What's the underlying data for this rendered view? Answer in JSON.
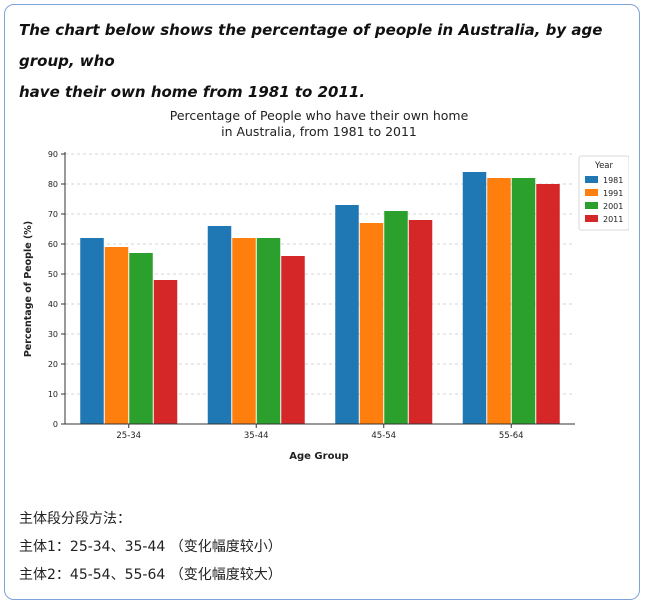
{
  "prompt": {
    "line1": "The chart below shows the percentage of people in Australia, by age group, who",
    "line2": "have their own home from 1981 to 2011."
  },
  "notes": {
    "heading": "主体段分段方法：",
    "item1": "主体1：25-34、35-44 （变化幅度较小）",
    "item2": "主体2：45-54、55-64 （变化幅度较大）"
  },
  "chart_data": {
    "type": "bar",
    "title_line1": "Percentage of People who have their own home",
    "title_line2": "in Australia, from 1981 to 2011",
    "xlabel": "Age Group",
    "ylabel": "Percentage of People (%)",
    "ylim": [
      0,
      90
    ],
    "yticks": [
      0,
      10,
      20,
      30,
      40,
      50,
      60,
      70,
      80,
      90
    ],
    "grid": true,
    "legend_title": "Year",
    "legend_position": "top-right",
    "categories": [
      "25-34",
      "35-44",
      "45-54",
      "55-64"
    ],
    "series": [
      {
        "name": "1981",
        "color": "#1f77b4",
        "values": [
          62,
          66,
          73,
          84
        ]
      },
      {
        "name": "1991",
        "color": "#ff7f0e",
        "values": [
          59,
          62,
          67,
          82
        ]
      },
      {
        "name": "2001",
        "color": "#2ca02c",
        "values": [
          57,
          62,
          71,
          82
        ]
      },
      {
        "name": "2011",
        "color": "#d62728",
        "values": [
          48,
          56,
          68,
          80
        ]
      }
    ]
  }
}
